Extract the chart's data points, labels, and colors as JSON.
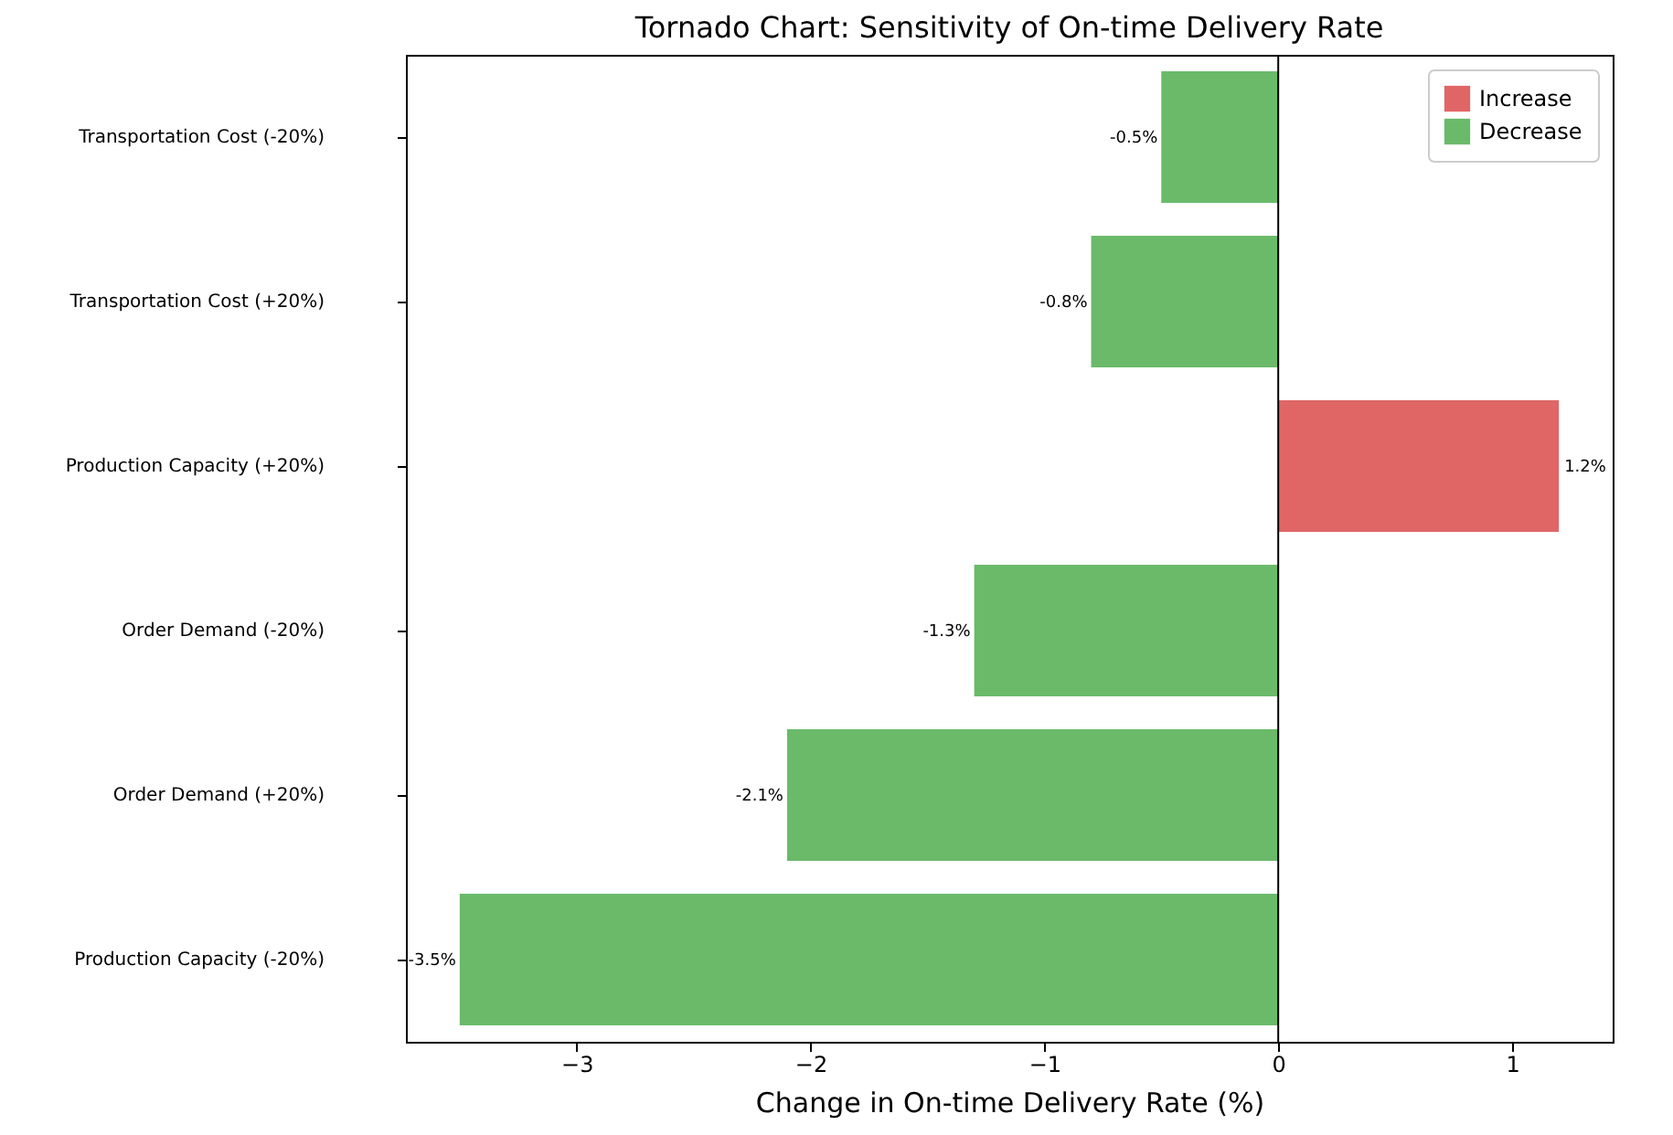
{
  "chart_data": {
    "type": "bar",
    "orientation": "horizontal",
    "title": "Tornado Chart: Sensitivity of On-time Delivery Rate",
    "xlabel": "Change in On-time Delivery Rate (%)",
    "categories": [
      "Transportation Cost (-20%)",
      "Transportation Cost (+20%)",
      "Production Capacity (+20%)",
      "Order Demand (-20%)",
      "Order Demand (+20%)",
      "Production Capacity (-20%)"
    ],
    "series": [
      {
        "name": "Increase",
        "color": "#e06666",
        "values": [
          null,
          null,
          1.2,
          null,
          null,
          null
        ],
        "value_labels": [
          null,
          null,
          "1.2%",
          null,
          null,
          null
        ]
      },
      {
        "name": "Decrease",
        "color": "#6aba6a",
        "values": [
          -0.5,
          -0.8,
          null,
          -1.3,
          -2.1,
          -3.5
        ],
        "value_labels": [
          "-0.5%",
          "-0.8%",
          null,
          "-1.3%",
          "-2.1%",
          "-3.5%"
        ]
      }
    ],
    "xlim": [
      -3.73,
      1.43
    ],
    "xticks": [
      {
        "value": -3,
        "label": "−3"
      },
      {
        "value": -2,
        "label": "−2"
      },
      {
        "value": -1,
        "label": "−1"
      },
      {
        "value": 0,
        "label": "0"
      },
      {
        "value": 1,
        "label": "1"
      }
    ],
    "ref_lines": [
      {
        "axis": "x",
        "value": 0,
        "color": "#000000"
      }
    ],
    "legend": "top right",
    "grid": false
  }
}
